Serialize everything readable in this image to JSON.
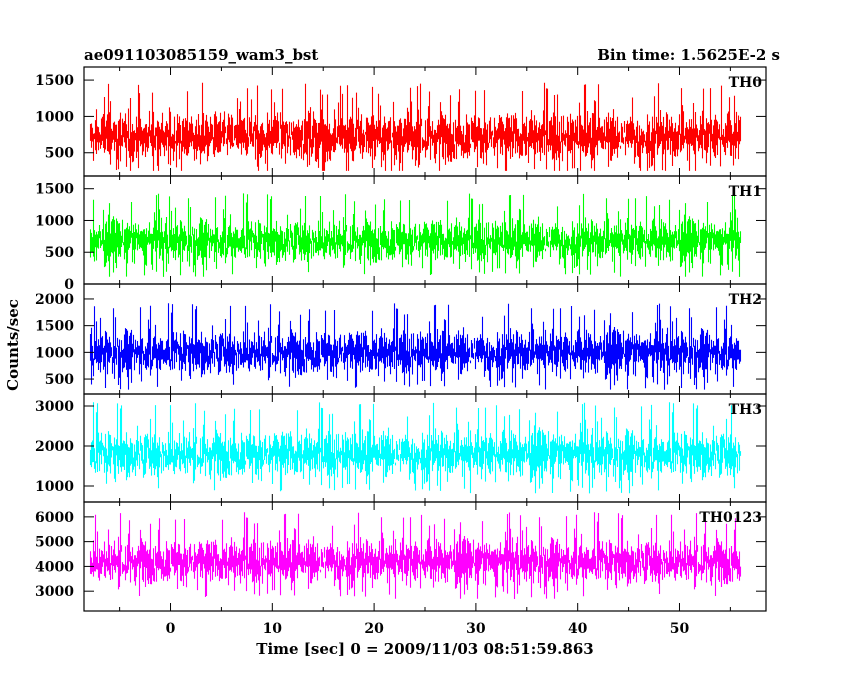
{
  "header": {
    "title": "ae091103085159_wam3_bst",
    "bin_time": "Bin time: 1.5625E-2 s"
  },
  "chart_data": {
    "type": "line",
    "ylabel": "Counts/sec",
    "xlabel": "Time [sec] 0 = 2009/11/03 08:51:59.863",
    "xlim": [
      -8.5,
      58.5
    ],
    "x_data_range": [
      -8,
      56
    ],
    "bin_time": 0.015625,
    "x_ticks": [
      0,
      10,
      20,
      30,
      40,
      50
    ],
    "grid": false,
    "panels": [
      {
        "name": "TH0",
        "color": "#ff0000",
        "ylim": [
          180,
          1680
        ],
        "y_ticks": [
          500,
          1000,
          1500
        ],
        "mean": 720,
        "spread": 300,
        "range": [
          250,
          1680
        ]
      },
      {
        "name": "TH1",
        "color": "#00ff00",
        "ylim": [
          0,
          1700
        ],
        "y_ticks": [
          0,
          500,
          1000,
          1500
        ],
        "mean": 680,
        "spread": 300,
        "range": [
          40,
          1650
        ]
      },
      {
        "name": "TH2",
        "color": "#0000ff",
        "ylim": [
          220,
          2280
        ],
        "y_ticks": [
          500,
          1000,
          1500,
          2000
        ],
        "mean": 1000,
        "spread": 370,
        "range": [
          280,
          2250
        ]
      },
      {
        "name": "TH3",
        "color": "#00ffff",
        "ylim": [
          600,
          3300
        ],
        "y_ticks": [
          1000,
          2000,
          3000
        ],
        "mean": 1800,
        "spread": 520,
        "range": [
          650,
          3250
        ]
      },
      {
        "name": "TH0123",
        "color": "#ff00ff",
        "ylim": [
          2200,
          6600
        ],
        "y_ticks": [
          3000,
          4000,
          5000,
          6000
        ],
        "mean": 4200,
        "spread": 800,
        "range": [
          2500,
          6550
        ]
      }
    ]
  }
}
